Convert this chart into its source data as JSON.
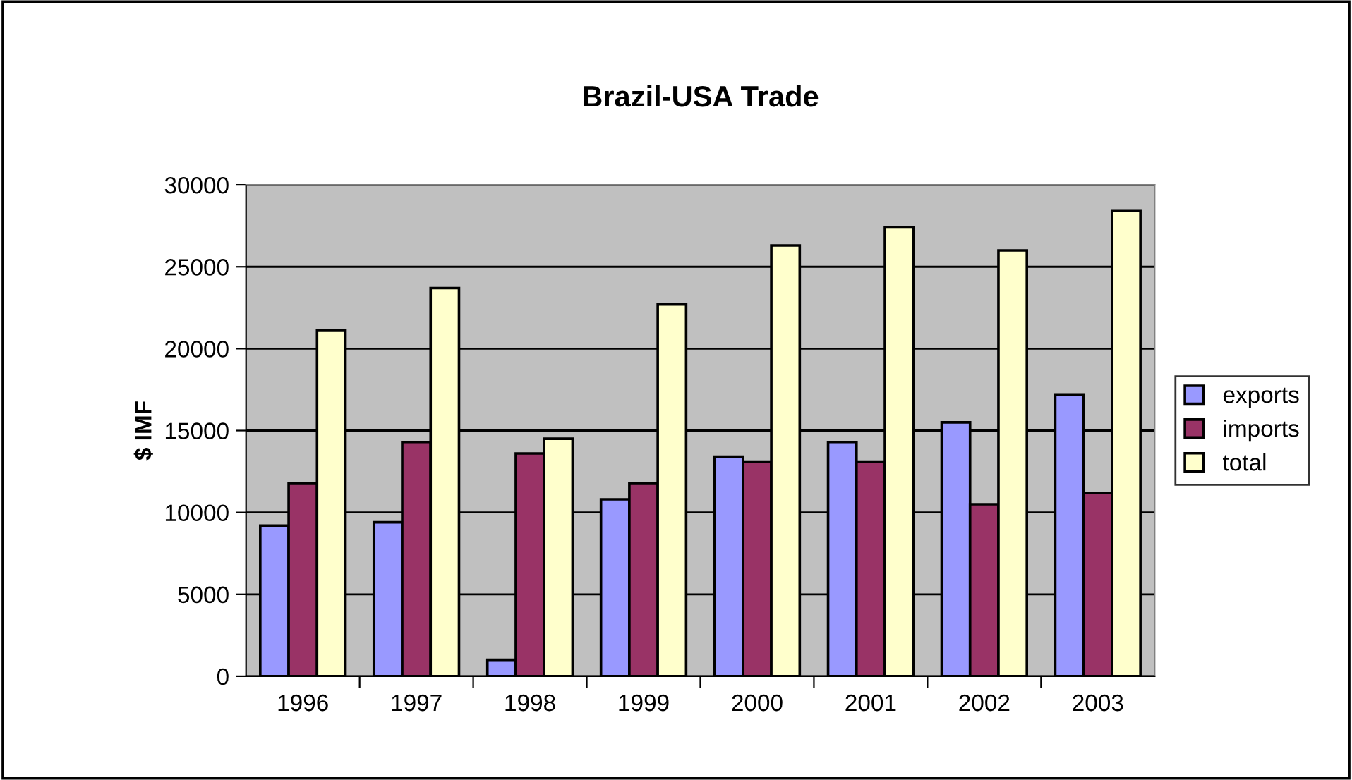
{
  "chart_data": {
    "type": "bar",
    "title": "Brazil-USA Trade",
    "ylabel": "$ IMF",
    "categories": [
      "1996",
      "1997",
      "1998",
      "1999",
      "2000",
      "2001",
      "2002",
      "2003"
    ],
    "series": [
      {
        "name": "exports",
        "color": "#9999ff",
        "values": [
          9200,
          9400,
          1000,
          10800,
          13400,
          14300,
          15500,
          17200
        ]
      },
      {
        "name": "imports",
        "color": "#993366",
        "values": [
          11800,
          14300,
          13600,
          11800,
          13100,
          13100,
          10500,
          11200
        ]
      },
      {
        "name": "total",
        "color": "#ffffcc",
        "values": [
          21100,
          23700,
          14500,
          22700,
          26300,
          27400,
          26000,
          28400
        ]
      }
    ],
    "ylim": [
      0,
      30000
    ],
    "yticks": [
      0,
      5000,
      10000,
      15000,
      20000,
      25000,
      30000
    ],
    "grid": "y",
    "legend": "right"
  }
}
